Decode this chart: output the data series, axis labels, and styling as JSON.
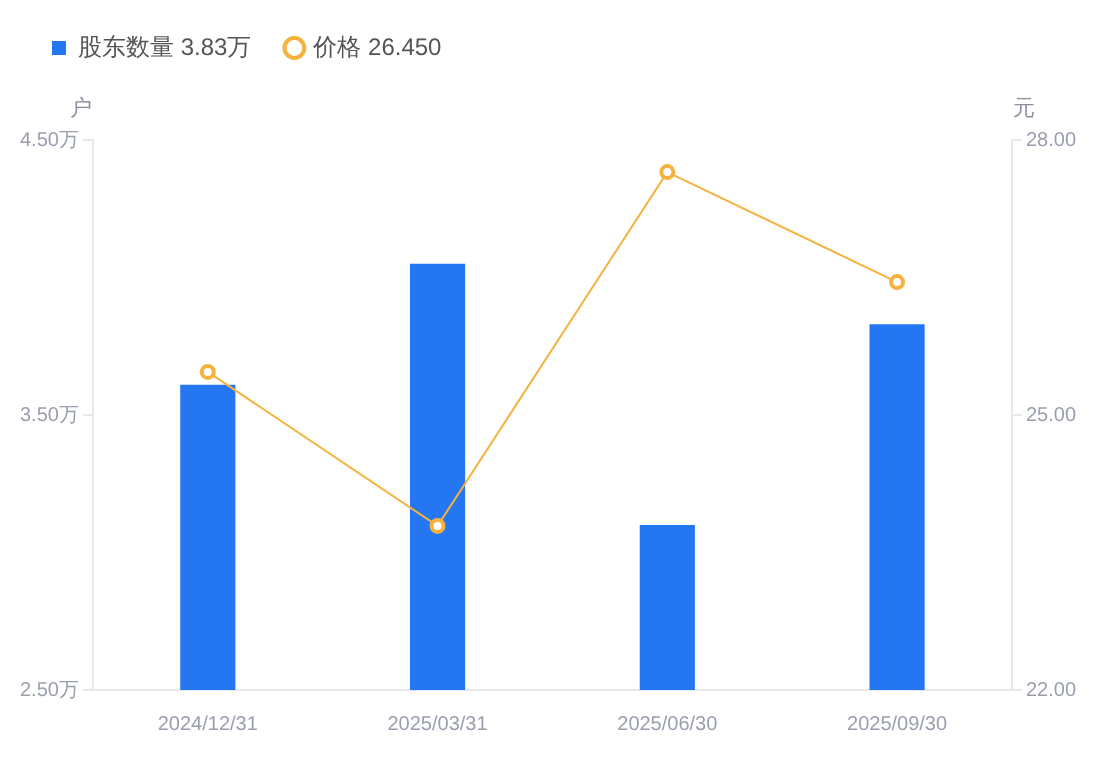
{
  "chart_data": {
    "type": "bar",
    "categories": [
      "2024/12/31",
      "2025/03/31",
      "2025/06/30",
      "2025/09/30"
    ],
    "ylabel": "户",
    "y2label": "元",
    "series": [
      {
        "name": "股东数量 3.83万",
        "color": "#2476f3",
        "values": [
          3.61,
          4.05,
          3.1,
          3.83
        ]
      },
      {
        "name": "价格 26.450",
        "type": "line",
        "axis": "y2",
        "color": "#f7b23e",
        "marker": "circle",
        "values": [
          25.47,
          23.79,
          27.65,
          26.45
        ]
      }
    ],
    "ylim": [
      2.5,
      4.5
    ],
    "yticks": [
      {
        "value": 2.5,
        "label": "2.50万"
      },
      {
        "value": 3.5,
        "label": "3.50万"
      },
      {
        "value": 4.5,
        "label": "4.50万"
      }
    ],
    "y2lim": [
      22,
      28
    ],
    "y2ticks": [
      {
        "value": 22,
        "label": "22.00"
      },
      {
        "value": 25,
        "label": "25.00"
      },
      {
        "value": 28,
        "label": "28.00"
      }
    ],
    "grid": false,
    "legend": "top left"
  }
}
